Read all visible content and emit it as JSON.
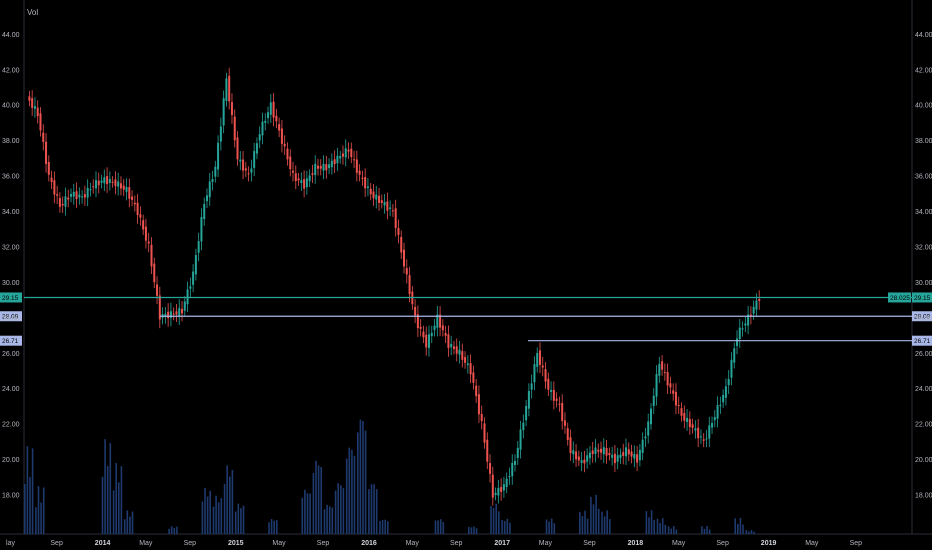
{
  "chart_data": {
    "type": "candlestick",
    "volume_label": "Vol",
    "y_range": [
      15.8,
      45.6
    ],
    "y_ticks": [
      "44.00",
      "42.00",
      "40.00",
      "38.00",
      "36.00",
      "34.00",
      "32.00",
      "30.00",
      "28.00",
      "26.00",
      "24.00",
      "22.00",
      "20.00",
      "18.00"
    ],
    "x_ticks": [
      {
        "label": "lay",
        "bold": false
      },
      {
        "label": "Sep",
        "bold": false
      },
      {
        "label": "2014",
        "bold": true
      },
      {
        "label": "May",
        "bold": false
      },
      {
        "label": "Sep",
        "bold": false
      },
      {
        "label": "2015",
        "bold": true
      },
      {
        "label": "May",
        "bold": false
      },
      {
        "label": "Sep",
        "bold": false
      },
      {
        "label": "2016",
        "bold": true
      },
      {
        "label": "May",
        "bold": false
      },
      {
        "label": "Sep",
        "bold": false
      },
      {
        "label": "2017",
        "bold": true
      },
      {
        "label": "May",
        "bold": false
      },
      {
        "label": "Sep",
        "bold": false
      },
      {
        "label": "2018",
        "bold": true
      },
      {
        "label": "May",
        "bold": false
      },
      {
        "label": "Sep",
        "bold": false
      },
      {
        "label": "2019",
        "bold": true
      },
      {
        "label": "May",
        "bold": false
      },
      {
        "label": "Sep",
        "bold": false
      }
    ],
    "price_path": [
      [
        "2013-05",
        40.5
      ],
      [
        "2013-06",
        39.5
      ],
      [
        "2013-07",
        36.0
      ],
      [
        "2013-08",
        34.3
      ],
      [
        "2013-09",
        35.0
      ],
      [
        "2013-10",
        34.8
      ],
      [
        "2013-11",
        35.5
      ],
      [
        "2013-12",
        35.8
      ],
      [
        "2014-01",
        35.6
      ],
      [
        "2014-02",
        35.2
      ],
      [
        "2014-03",
        34.0
      ],
      [
        "2014-04",
        32.0
      ],
      [
        "2014-05",
        28.1
      ],
      [
        "2014-06",
        28.2
      ],
      [
        "2014-07",
        28.4
      ],
      [
        "2014-08",
        30.5
      ],
      [
        "2014-09",
        34.5
      ],
      [
        "2014-10",
        36.5
      ],
      [
        "2014-11",
        41.5
      ],
      [
        "2014-12",
        37.0
      ],
      [
        "2015-01",
        36.0
      ],
      [
        "2015-02",
        38.5
      ],
      [
        "2015-03",
        40.0
      ],
      [
        "2015-04",
        38.0
      ],
      [
        "2015-05",
        36.0
      ],
      [
        "2015-06",
        35.5
      ],
      [
        "2015-07",
        36.5
      ],
      [
        "2015-08",
        36.5
      ],
      [
        "2015-09",
        37.0
      ],
      [
        "2015-10",
        37.5
      ],
      [
        "2015-11",
        36.0
      ],
      [
        "2015-12",
        35.0
      ],
      [
        "2016-01",
        34.5
      ],
      [
        "2016-02",
        34.0
      ],
      [
        "2016-03",
        31.0
      ],
      [
        "2016-04",
        28.0
      ],
      [
        "2016-05",
        26.5
      ],
      [
        "2016-06",
        28.0
      ],
      [
        "2016-07",
        26.5
      ],
      [
        "2016-08",
        26.0
      ],
      [
        "2016-09",
        25.0
      ],
      [
        "2016-10",
        22.0
      ],
      [
        "2016-11",
        18.0
      ],
      [
        "2016-12",
        18.5
      ],
      [
        "2017-01",
        20.0
      ],
      [
        "2017-02",
        23.0
      ],
      [
        "2017-03",
        26.0
      ],
      [
        "2017-04",
        24.0
      ],
      [
        "2017-05",
        23.0
      ],
      [
        "2017-06",
        20.5
      ],
      [
        "2017-07",
        19.8
      ],
      [
        "2017-08",
        20.5
      ],
      [
        "2017-09",
        20.5
      ],
      [
        "2017-10",
        20.0
      ],
      [
        "2017-11",
        20.5
      ],
      [
        "2017-12",
        20.0
      ],
      [
        "2018-01",
        22.0
      ],
      [
        "2018-02",
        25.5
      ],
      [
        "2018-03",
        24.0
      ],
      [
        "2018-04",
        22.5
      ],
      [
        "2018-05",
        21.8
      ],
      [
        "2018-06",
        21.0
      ],
      [
        "2018-07",
        22.5
      ],
      [
        "2018-08",
        24.0
      ],
      [
        "2018-09",
        27.0
      ],
      [
        "2018-10",
        28.0
      ],
      [
        "2018-11",
        29.15
      ]
    ],
    "volume": [
      [
        "2013-05",
        22
      ],
      [
        "2013-06",
        12
      ],
      [
        "2013-12",
        24
      ],
      [
        "2014-01",
        18
      ],
      [
        "2014-02",
        6
      ],
      [
        "2014-06",
        2
      ],
      [
        "2014-09",
        12
      ],
      [
        "2014-10",
        10
      ],
      [
        "2014-11",
        18
      ],
      [
        "2014-12",
        8
      ],
      [
        "2015-03",
        4
      ],
      [
        "2015-06",
        12
      ],
      [
        "2015-07",
        20
      ],
      [
        "2015-08",
        8
      ],
      [
        "2015-09",
        14
      ],
      [
        "2015-10",
        24
      ],
      [
        "2015-11",
        32
      ],
      [
        "2015-12",
        14
      ],
      [
        "2016-01",
        4
      ],
      [
        "2016-06",
        4
      ],
      [
        "2016-09",
        2
      ],
      [
        "2016-11",
        8
      ],
      [
        "2016-12",
        4
      ],
      [
        "2017-04",
        4
      ],
      [
        "2017-07",
        6
      ],
      [
        "2017-08",
        10
      ],
      [
        "2017-09",
        6
      ],
      [
        "2018-01",
        6
      ],
      [
        "2018-02",
        4
      ],
      [
        "2018-03",
        2
      ],
      [
        "2018-06",
        2
      ],
      [
        "2018-09",
        4
      ],
      [
        "2018-10",
        1
      ]
    ],
    "horizontal_lines": [
      {
        "price": 29.15,
        "color": "#26a69a",
        "label_left": "29.15",
        "label_right": "29.15"
      },
      {
        "price": 28.09,
        "color": "#a9b8e8",
        "label_left": "28.09",
        "label_right": "28.09"
      },
      {
        "price": 26.71,
        "color": "#a9b8e8",
        "label_left": "26.71",
        "label_right": "26.71"
      }
    ],
    "current_price_tag": "28.025",
    "colors": {
      "up": "#26a69a",
      "down": "#ef5350",
      "volume": "#1e3a6e",
      "axis": "#2a2e39"
    }
  }
}
